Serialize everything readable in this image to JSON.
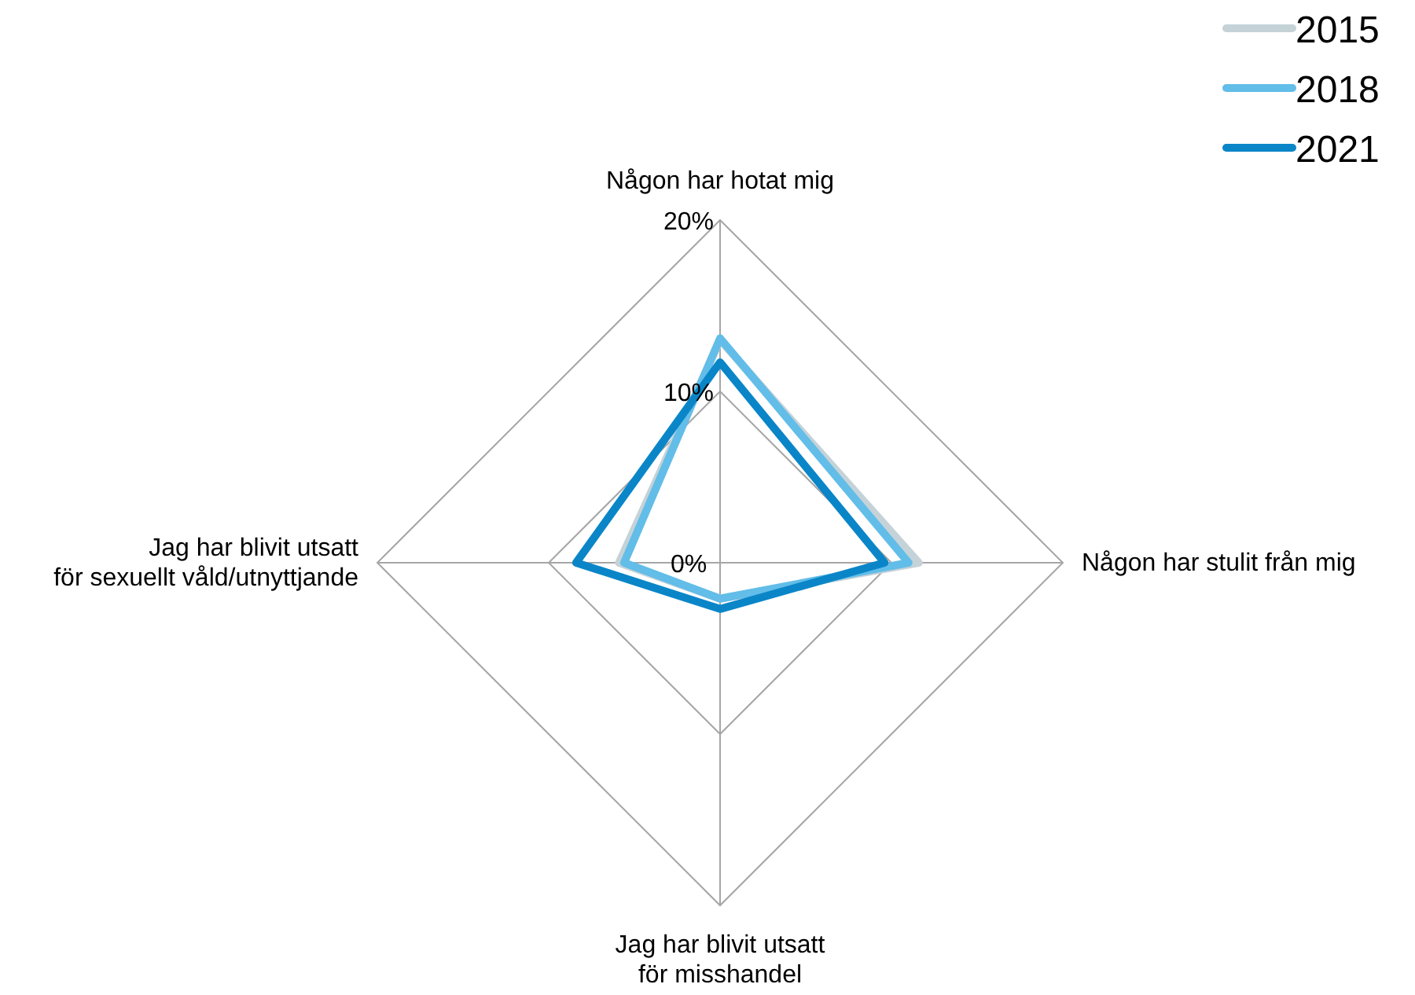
{
  "chart_data": {
    "type": "radar",
    "categories": [
      "Någon har hotat mig",
      "Någon har stulit från mig",
      "Jag har blivit utsatt för misshandel",
      "Jag har blivit utsatt för sexuellt våld/utnyttjande"
    ],
    "series": [
      {
        "name": "2015",
        "color": "#c5d3d8",
        "values": [
          13,
          11.6,
          2.1,
          5.9
        ]
      },
      {
        "name": "2018",
        "color": "#62bde8",
        "values": [
          13.1,
          11,
          2.1,
          5.6
        ]
      },
      {
        "name": "2021",
        "color": "#0a86c8",
        "values": [
          11.7,
          9.6,
          2.7,
          8.4
        ]
      }
    ],
    "ylim": [
      0,
      20
    ],
    "yticks": [
      {
        "value": 0,
        "label": "0%"
      },
      {
        "value": 10,
        "label": "10%"
      },
      {
        "value": 20,
        "label": "20%"
      }
    ],
    "grid": true,
    "legend": "top right"
  }
}
